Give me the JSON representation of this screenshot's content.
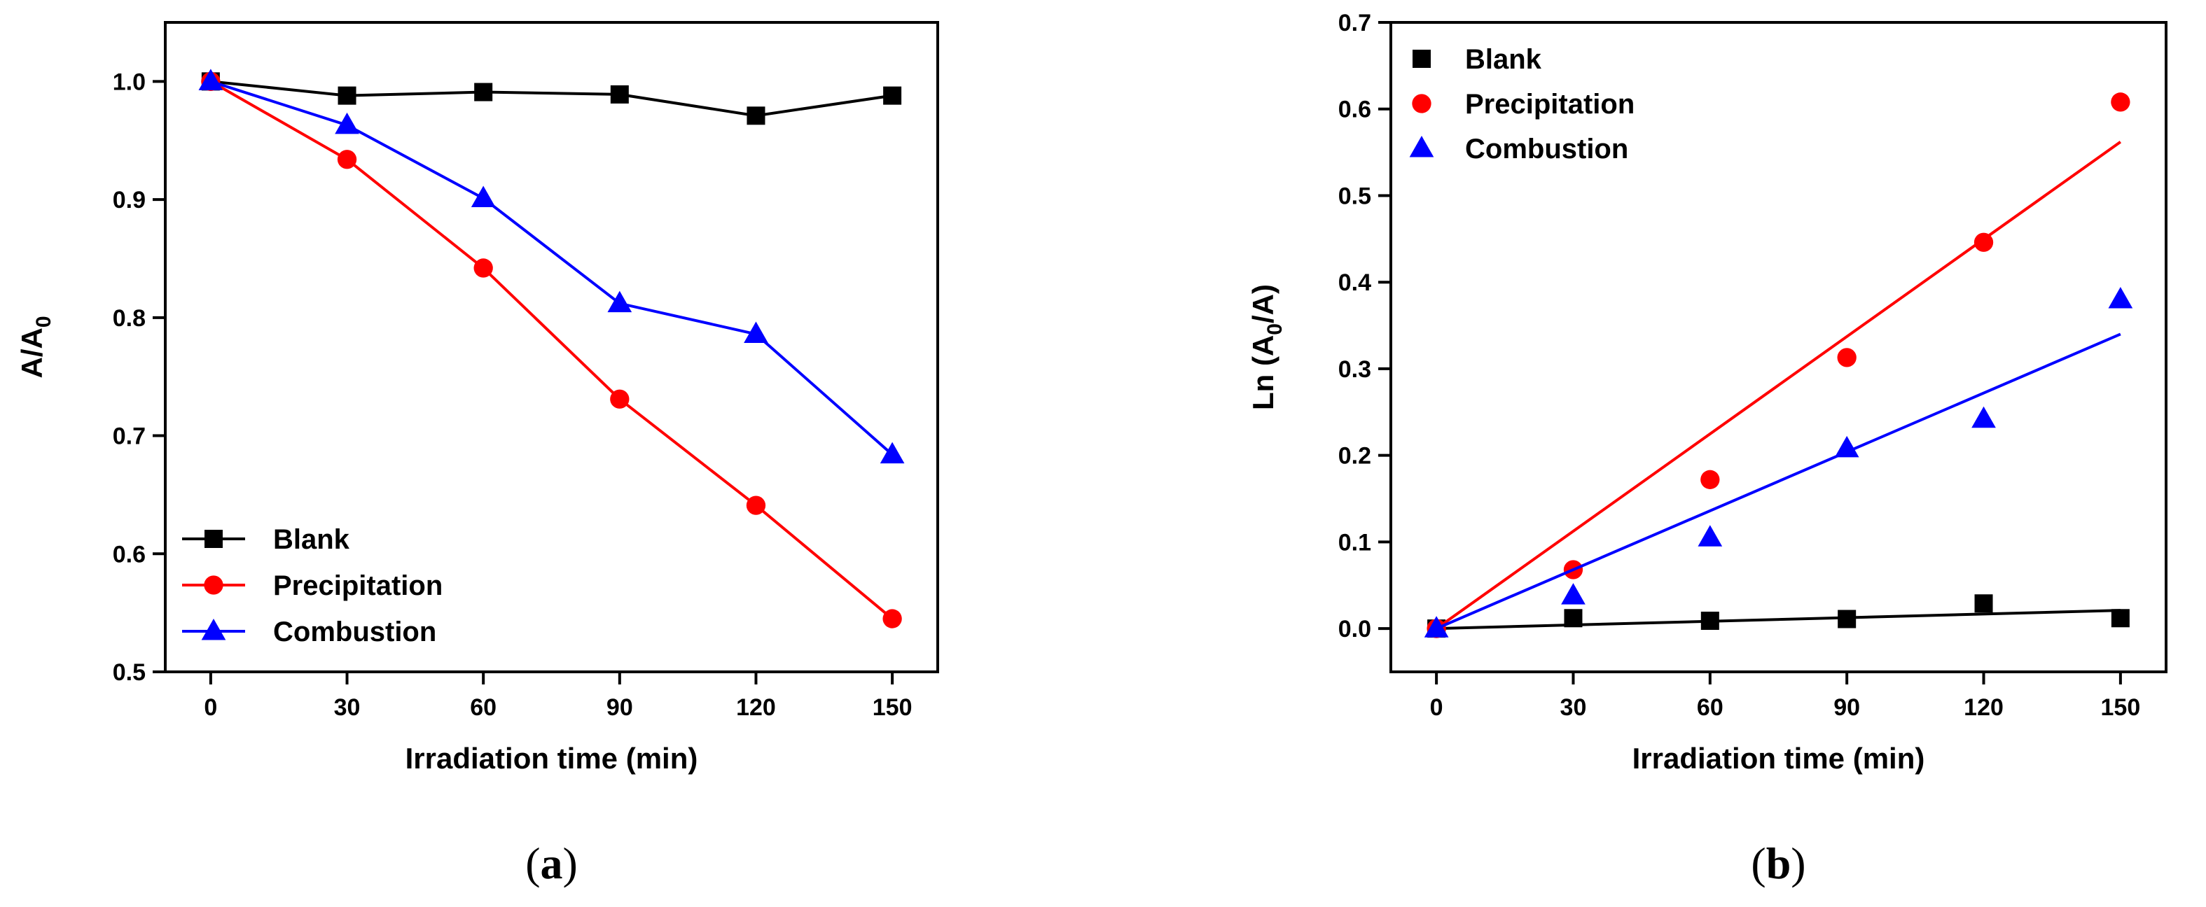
{
  "chart_data": [
    {
      "type": "line",
      "panel_label": "a",
      "xlabel": "Irradiation time (min)",
      "ylabel": {
        "base": "A/A",
        "sub": "0"
      },
      "xlim": [
        -10,
        160
      ],
      "ylim": [
        0.5,
        1.05
      ],
      "xticks": [
        0,
        30,
        60,
        90,
        120,
        150
      ],
      "xtick_labels": [
        "0",
        "30",
        "60",
        "90",
        "120",
        "150"
      ],
      "yticks": [
        0.5,
        0.6,
        0.7,
        0.8,
        0.9,
        1.0
      ],
      "ytick_labels": [
        "0.5",
        "0.6",
        "0.7",
        "0.8",
        "0.9",
        "1.0"
      ],
      "legend_position": "bottom-left",
      "connect_points": true,
      "x": [
        0,
        30,
        60,
        90,
        120,
        150
      ],
      "series": [
        {
          "name": "Blank",
          "marker": "square",
          "color": "#000000",
          "values": [
            1.0,
            0.988,
            0.991,
            0.989,
            0.971,
            0.988
          ]
        },
        {
          "name": "Precipitation",
          "marker": "circle",
          "color": "#ff0000",
          "values": [
            1.0,
            0.934,
            0.842,
            0.731,
            0.641,
            0.545
          ]
        },
        {
          "name": "Combustion",
          "marker": "triangle",
          "color": "#0000ff",
          "values": [
            1.0,
            0.963,
            0.901,
            0.812,
            0.786,
            0.684
          ]
        }
      ]
    },
    {
      "type": "scatter",
      "panel_label": "b",
      "xlabel": "Irradiation time (min)",
      "ylabel": {
        "base": "Ln (A",
        "sub": "0",
        "tail": "/A)"
      },
      "xlim": [
        -10,
        160
      ],
      "ylim": [
        -0.05,
        0.7
      ],
      "xticks": [
        0,
        30,
        60,
        90,
        120,
        150
      ],
      "xtick_labels": [
        "0",
        "30",
        "60",
        "90",
        "120",
        "150"
      ],
      "yticks": [
        0.0,
        0.1,
        0.2,
        0.3,
        0.4,
        0.5,
        0.6,
        0.7
      ],
      "ytick_labels": [
        "0.0",
        "0.1",
        "0.2",
        "0.3",
        "0.4",
        "0.5",
        "0.6",
        "0.7"
      ],
      "legend_position": "top-left",
      "connect_points": false,
      "x": [
        0,
        30,
        60,
        90,
        120,
        150
      ],
      "series": [
        {
          "name": "Blank",
          "marker": "square",
          "color": "#000000",
          "values": [
            0.0,
            0.012,
            0.009,
            0.011,
            0.029,
            0.012
          ],
          "fit_line": [
            0.0,
            0.021
          ]
        },
        {
          "name": "Precipitation",
          "marker": "circle",
          "color": "#ff0000",
          "values": [
            0.0,
            0.068,
            0.172,
            0.313,
            0.446,
            0.608
          ],
          "fit_line": [
            0.0,
            0.562
          ]
        },
        {
          "name": "Combustion",
          "marker": "triangle",
          "color": "#0000ff",
          "values": [
            0.0,
            0.038,
            0.105,
            0.208,
            0.242,
            0.38
          ],
          "fit_line": [
            0.0,
            0.34
          ]
        }
      ]
    }
  ]
}
